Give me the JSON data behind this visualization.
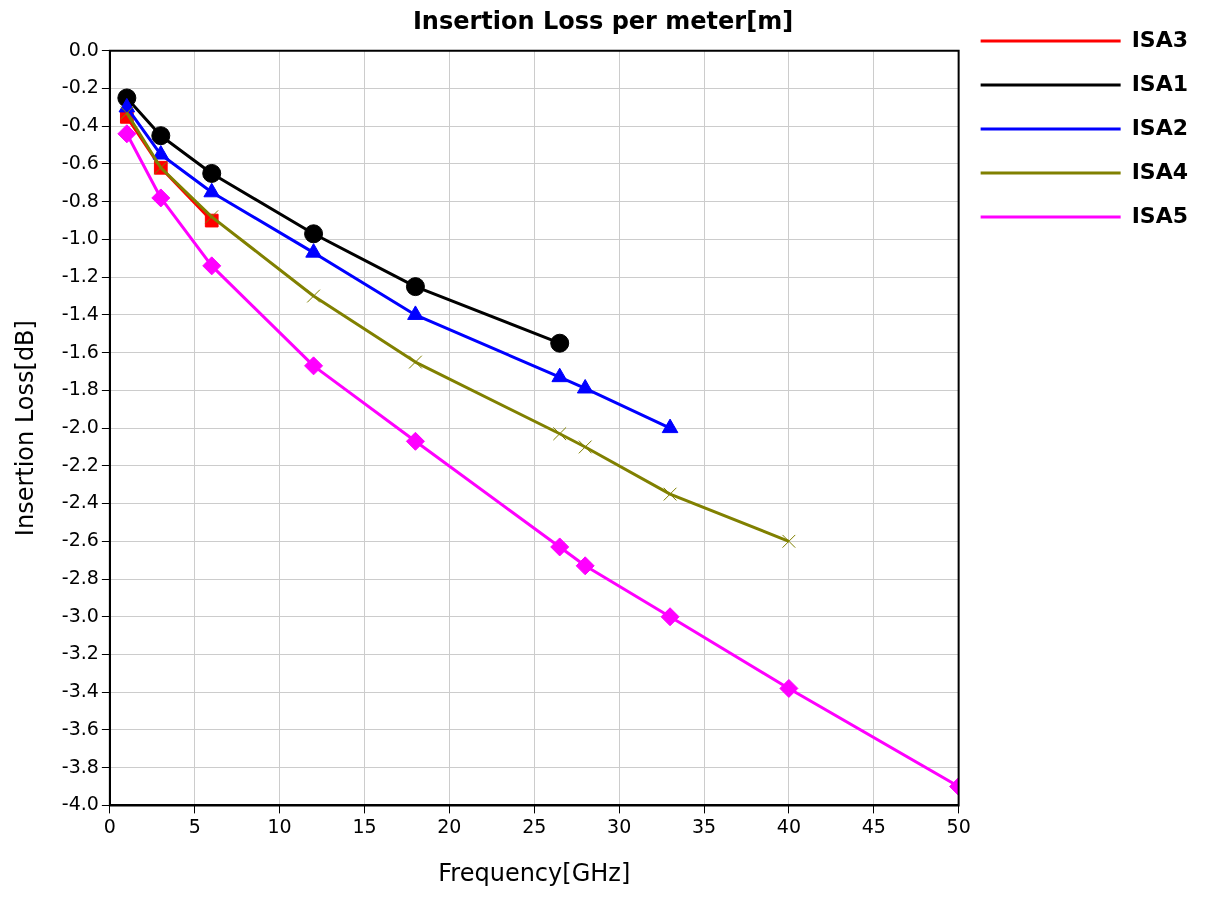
{
  "chart_data": {
    "type": "line",
    "title": "Insertion Loss per meter[m]",
    "xlabel": "Frequency[GHz]",
    "ylabel": "Insertion Loss[dB]",
    "xlim": [
      0,
      50
    ],
    "xticks": [
      0,
      5,
      10,
      15,
      20,
      25,
      30,
      35,
      40,
      45,
      50
    ],
    "ylim": [
      -4.0,
      0.0
    ],
    "yticks": [
      {
        "value": -4.0,
        "label": "-4.0"
      },
      {
        "value": -3.8,
        "label": "-3.8"
      },
      {
        "value": -3.6,
        "label": "-3.6"
      },
      {
        "value": -3.4,
        "label": "-3.4"
      },
      {
        "value": -3.2,
        "label": "-3.2"
      },
      {
        "value": -3.0,
        "label": "-3.0"
      },
      {
        "value": -2.8,
        "label": "-2.8"
      },
      {
        "value": -2.6,
        "label": "-2.6"
      },
      {
        "value": -2.4,
        "label": "-2.4"
      },
      {
        "value": -2.2,
        "label": "-2.2"
      },
      {
        "value": -2.0,
        "label": "-2.0"
      },
      {
        "value": -1.8,
        "label": "-1.8"
      },
      {
        "value": -1.6,
        "label": "-1.6"
      },
      {
        "value": -1.4,
        "label": "-1.4"
      },
      {
        "value": -1.2,
        "label": "-1.2"
      },
      {
        "value": -1.0,
        "label": "-1.0"
      },
      {
        "value": -0.8,
        "label": "-0.8"
      },
      {
        "value": -0.6,
        "label": "-0.6"
      },
      {
        "value": -0.4,
        "label": "-0.4"
      },
      {
        "value": -0.2,
        "label": "-0.2"
      },
      {
        "value": 0.0,
        "label": "0.0"
      }
    ],
    "grid": true,
    "legend": "top right",
    "line_style": "solid",
    "series": [
      {
        "name": "ISA3",
        "color": "#ff0000",
        "marker": "square",
        "x": [
          1,
          3,
          6
        ],
        "values": [
          -0.35,
          -0.62,
          -0.9
        ]
      },
      {
        "name": "ISA1",
        "color": "#000000",
        "marker": "circle",
        "x": [
          1,
          3,
          6,
          12,
          18,
          26.5
        ],
        "values": [
          -0.25,
          -0.45,
          -0.65,
          -0.97,
          -1.25,
          -1.55
        ]
      },
      {
        "name": "ISA2",
        "color": "#0000ff",
        "marker": "triangle",
        "x": [
          1,
          3,
          6,
          12,
          18,
          26.5,
          28,
          33
        ],
        "values": [
          -0.3,
          -0.55,
          -0.75,
          -1.07,
          -1.4,
          -1.73,
          -1.79,
          -2.0
        ]
      },
      {
        "name": "ISA4",
        "color": "#808000",
        "marker": "cross",
        "x": [
          1,
          3,
          6,
          12,
          18,
          26.5,
          28,
          33,
          40
        ],
        "values": [
          -0.33,
          -0.62,
          -0.88,
          -1.3,
          -1.65,
          -2.03,
          -2.1,
          -2.35,
          -2.6
        ]
      },
      {
        "name": "ISA5",
        "color": "#ff00ff",
        "marker": "diamond",
        "x": [
          1,
          3,
          6,
          12,
          18,
          26.5,
          28,
          33,
          40,
          50
        ],
        "values": [
          -0.44,
          -0.78,
          -1.14,
          -1.67,
          -2.07,
          -2.63,
          -2.73,
          -3.0,
          -3.38,
          -3.9
        ]
      }
    ]
  }
}
